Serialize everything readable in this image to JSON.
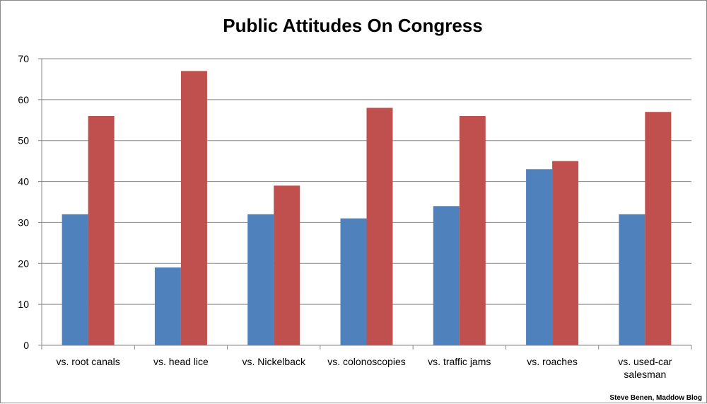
{
  "chart_data": {
    "type": "bar",
    "title": "Public Attitudes On Congress",
    "xlabel": "",
    "ylabel": "",
    "ylim": [
      0,
      70
    ],
    "yticks": [
      0,
      10,
      20,
      30,
      40,
      50,
      60,
      70
    ],
    "grid": true,
    "legend": "none",
    "categories": [
      [
        "vs. root canals"
      ],
      [
        "vs. head lice"
      ],
      [
        "vs. Nickelback"
      ],
      [
        "vs. colonoscopies"
      ],
      [
        "vs. traffic jams"
      ],
      [
        "vs. roaches"
      ],
      [
        "vs. used-car",
        "salesman"
      ]
    ],
    "series": [
      {
        "color": "#4f81bd",
        "values": [
          32,
          19,
          32,
          31,
          34,
          43,
          32
        ]
      },
      {
        "color": "#c0504d",
        "values": [
          56,
          67,
          39,
          58,
          56,
          45,
          57
        ]
      }
    ],
    "credit": "Steve Benen, Maddow Blog"
  }
}
